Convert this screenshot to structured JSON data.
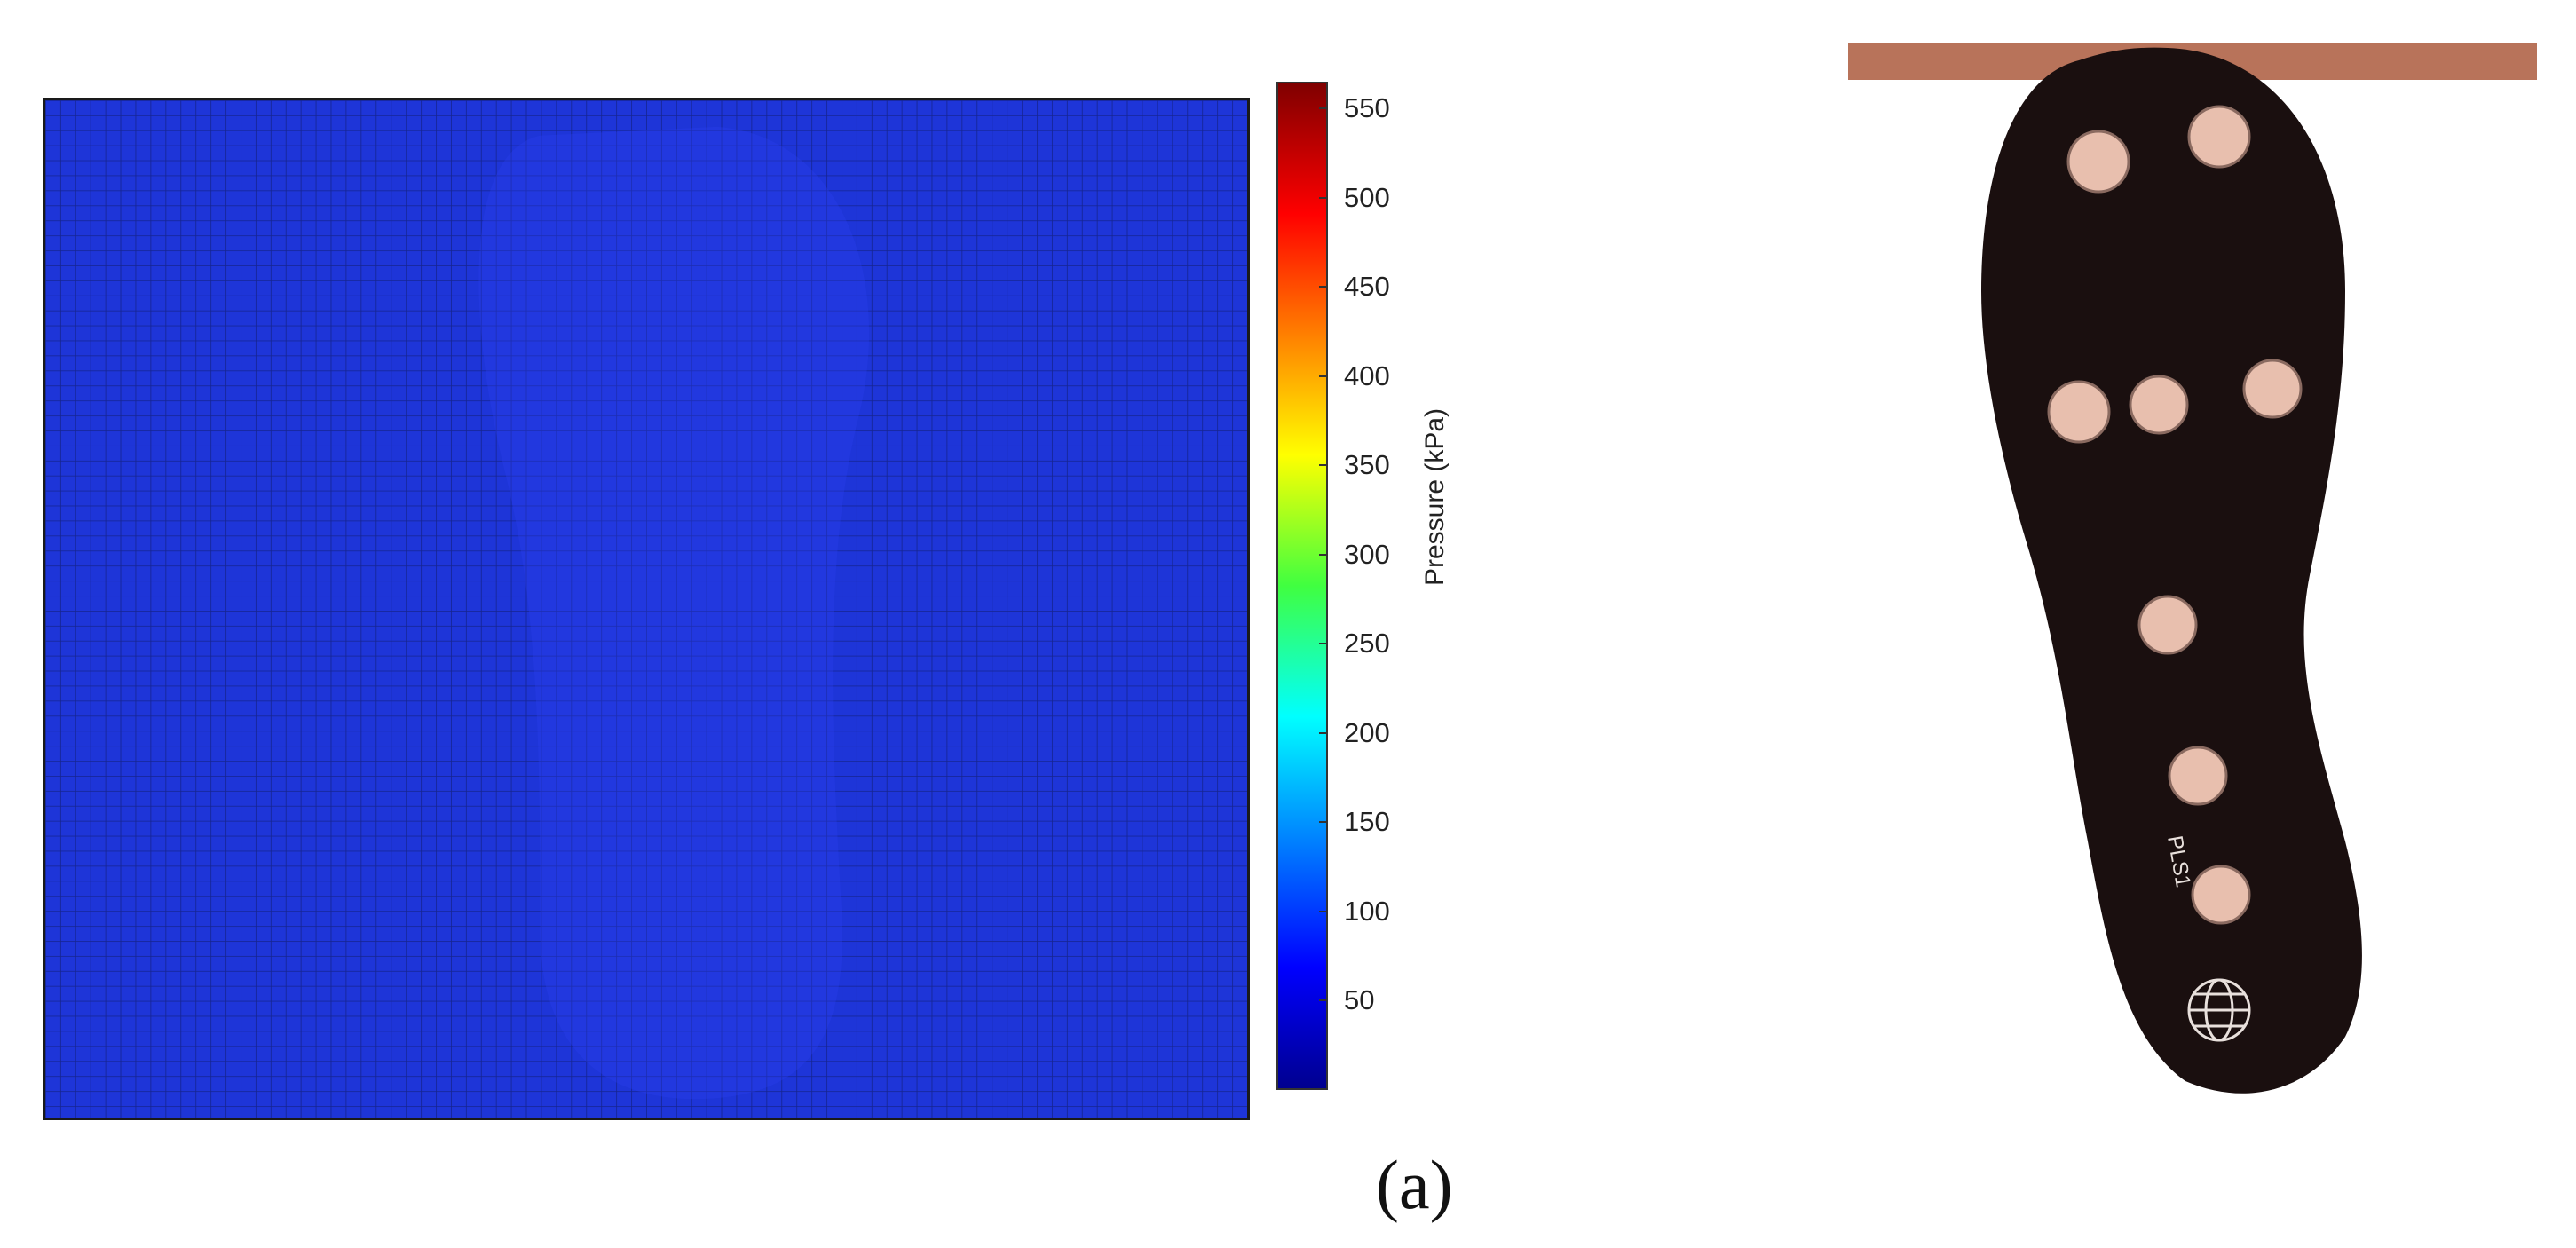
{
  "chart_data": {
    "type": "heatmap",
    "colorbar": {
      "label": "Pressure (kPa)",
      "range": [
        0,
        565
      ],
      "ticks": [
        50,
        100,
        150,
        200,
        250,
        300,
        350,
        400,
        450,
        500,
        550
      ],
      "tick_labels": [
        "50",
        "100",
        "150",
        "200",
        "250",
        "300",
        "350",
        "400",
        "450",
        "500",
        "550"
      ],
      "colormap": "jet"
    },
    "grid": true,
    "values_note_color": "#1e2fd6"
  },
  "figure_label": "(a)",
  "photo": {
    "sensor_text": "PLS1"
  }
}
